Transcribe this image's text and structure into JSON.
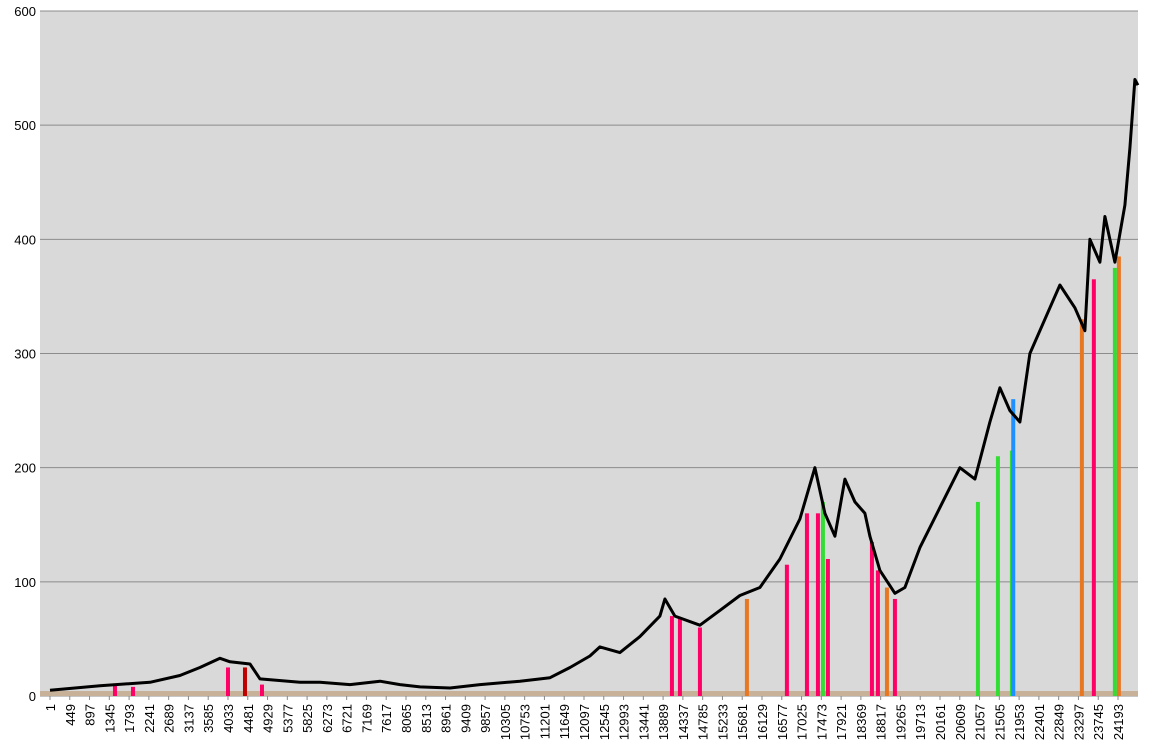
{
  "chart_data": {
    "type": "line",
    "xlim": [
      -225,
      24646
    ],
    "ylim": [
      0,
      600
    ],
    "xticks": [
      1,
      449,
      897,
      1345,
      1793,
      2241,
      2689,
      3137,
      3585,
      4033,
      4481,
      4929,
      5377,
      5825,
      6273,
      6721,
      7169,
      7617,
      8065,
      8513,
      8961,
      9409,
      9857,
      10305,
      10753,
      11201,
      11649,
      12097,
      12545,
      12993,
      13441,
      13889,
      14337,
      14785,
      15233,
      15681,
      16129,
      16577,
      17025,
      17473,
      17921,
      18369,
      18817,
      19265,
      19713,
      20161,
      20609,
      21057,
      21505,
      21953,
      22401,
      22849,
      23297,
      23745,
      24193
    ],
    "yticks": [
      0,
      100,
      200,
      300,
      400,
      500,
      600
    ],
    "grid": true,
    "background": "#d9d9d9",
    "series": [
      {
        "type": "line",
        "color": "#000000",
        "x": [
          1,
          1134,
          2266,
          2945,
          3398,
          3852,
          4078,
          4531,
          4758,
          5664,
          6117,
          6796,
          7476,
          7929,
          8382,
          9061,
          9741,
          10647,
          11326,
          11779,
          12232,
          12458,
          12911,
          13364,
          13817,
          13930,
          14156,
          14723,
          15176,
          15629,
          16082,
          16535,
          16988,
          17328,
          17554,
          17781,
          18007,
          18234,
          18460,
          18574,
          18800,
          19140,
          19366,
          19706,
          20159,
          20612,
          20951,
          21291,
          21518,
          21744,
          21971,
          22197,
          22650,
          22877,
          23216,
          23443,
          23556,
          23783,
          23896,
          24122,
          24349,
          24462,
          24575,
          24643
        ],
        "values": [
          5,
          9,
          12,
          18,
          25,
          33,
          30,
          28,
          15,
          12,
          12,
          10,
          13,
          10,
          8,
          7,
          10,
          13,
          16,
          25,
          35,
          43,
          38,
          52,
          70,
          85,
          70,
          62,
          75,
          88,
          95,
          120,
          155,
          200,
          160,
          140,
          190,
          170,
          160,
          140,
          110,
          90,
          95,
          130,
          165,
          200,
          190,
          240,
          270,
          250,
          240,
          300,
          340,
          360,
          340,
          320,
          400,
          380,
          420,
          380,
          430,
          480,
          540,
          535
        ]
      },
      {
        "type": "bar",
        "x": [
          1473,
          1881,
          4033,
          4418,
          4803,
          14089,
          14270,
          14723,
          15787,
          16693,
          17147,
          17396,
          17509,
          17622,
          18619,
          18755,
          18959,
          19140,
          21020,
          21473,
          21790,
          21820,
          23375,
          23646,
          24122,
          24213
        ],
        "values": [
          9,
          8,
          25,
          25,
          10,
          70,
          68,
          60,
          85,
          115,
          160,
          160,
          170,
          120,
          135,
          110,
          95,
          85,
          170,
          210,
          215,
          260,
          330,
          365,
          375,
          385
        ],
        "colors": [
          "#ff0066",
          "#ff0066",
          "#ff0066",
          "#c00000",
          "#ff0066",
          "#ff0066",
          "#ff0066",
          "#ff0066",
          "#e87722",
          "#ff0066",
          "#ff0066",
          "#ff0066",
          "#33dd33",
          "#ff0066",
          "#ff0066",
          "#ff0066",
          "#e87722",
          "#ff0066",
          "#33dd33",
          "#33dd33",
          "#33dd33",
          "#1e90ff",
          "#e87722",
          "#ff0066",
          "#33dd33",
          "#e87722"
        ]
      }
    ]
  }
}
